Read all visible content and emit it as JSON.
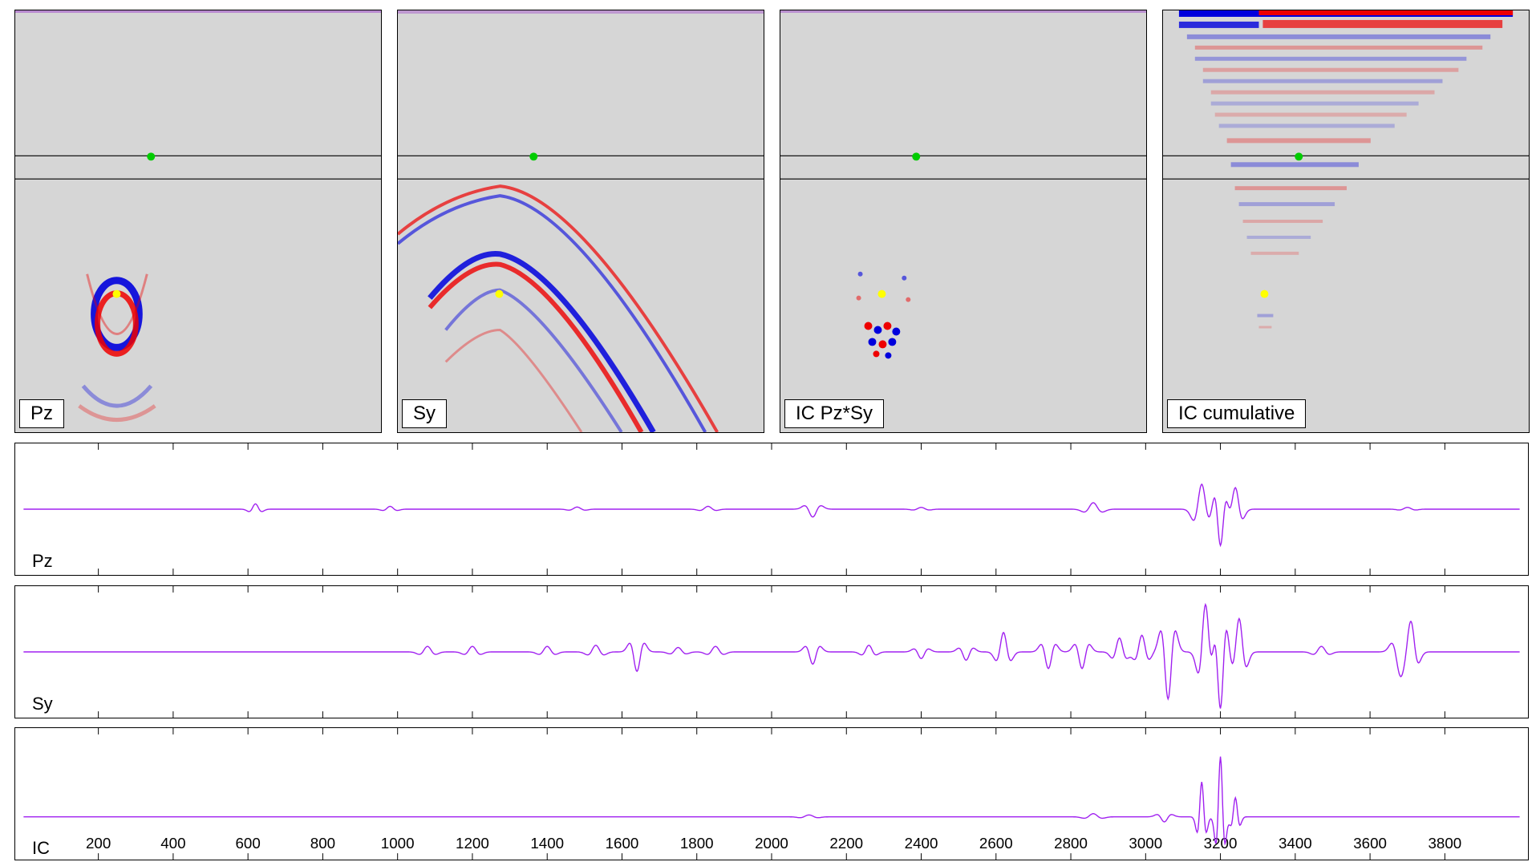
{
  "panels": [
    {
      "label": "Pz"
    },
    {
      "label": "Sy"
    },
    {
      "label": "IC Pz*Sy"
    },
    {
      "label": "IC cumulative"
    }
  ],
  "colors": {
    "panel_bg": "#d6d6d6",
    "positive": "#ee0000",
    "negative": "#0000dd",
    "trace": "#a020f0",
    "receiver_marker": "#00cc00",
    "source_marker": "#ffff00"
  },
  "chart_data": [
    {
      "type": "line",
      "series": [
        {
          "name": "Pz",
          "label": "Pz"
        }
      ],
      "xlabel": "",
      "ylabel": "",
      "xlim": [
        0,
        4000
      ],
      "xticks": [
        200,
        400,
        600,
        800,
        1000,
        1200,
        1400,
        1600,
        1800,
        2000,
        2200,
        2400,
        2600,
        2800,
        3000,
        3200,
        3400,
        3600,
        3800
      ],
      "grid": false,
      "events": [
        {
          "t": 620,
          "amp": 0.15,
          "width": 14
        },
        {
          "t": 980,
          "amp": 0.08,
          "width": 16
        },
        {
          "t": 1480,
          "amp": 0.06,
          "width": 18
        },
        {
          "t": 1830,
          "amp": 0.08,
          "width": 18
        },
        {
          "t": 2110,
          "amp": -0.22,
          "width": 18
        },
        {
          "t": 2400,
          "amp": 0.05,
          "width": 18
        },
        {
          "t": 2860,
          "amp": 0.18,
          "width": 20
        },
        {
          "t": 3150,
          "amp": 0.7,
          "width": 18
        },
        {
          "t": 3200,
          "amp": -1.0,
          "width": 14
        },
        {
          "t": 3240,
          "amp": 0.6,
          "width": 16
        },
        {
          "t": 3700,
          "amp": 0.05,
          "width": 18
        }
      ]
    },
    {
      "type": "line",
      "series": [
        {
          "name": "Sy",
          "label": "Sy"
        }
      ],
      "xlabel": "",
      "ylabel": "",
      "xlim": [
        0,
        4000
      ],
      "xticks": [
        200,
        400,
        600,
        800,
        1000,
        1200,
        1400,
        1600,
        1800,
        2000,
        2200,
        2400,
        2600,
        2800,
        3000,
        3200,
        3400,
        3600,
        3800
      ],
      "grid": false,
      "events": [
        {
          "t": 1080,
          "amp": 0.1,
          "width": 18
        },
        {
          "t": 1200,
          "amp": 0.1,
          "width": 18
        },
        {
          "t": 1400,
          "amp": 0.1,
          "width": 18
        },
        {
          "t": 1530,
          "amp": 0.12,
          "width": 18
        },
        {
          "t": 1640,
          "amp": -0.35,
          "width": 16
        },
        {
          "t": 1750,
          "amp": 0.08,
          "width": 18
        },
        {
          "t": 1850,
          "amp": 0.1,
          "width": 18
        },
        {
          "t": 2110,
          "amp": -0.22,
          "width": 16
        },
        {
          "t": 2260,
          "amp": 0.12,
          "width": 16
        },
        {
          "t": 2400,
          "amp": -0.12,
          "width": 16
        },
        {
          "t": 2520,
          "amp": -0.15,
          "width": 16
        },
        {
          "t": 2620,
          "amp": 0.35,
          "width": 16
        },
        {
          "t": 2740,
          "amp": -0.3,
          "width": 16
        },
        {
          "t": 2830,
          "amp": -0.3,
          "width": 16
        },
        {
          "t": 2930,
          "amp": 0.25,
          "width": 16
        },
        {
          "t": 2990,
          "amp": 0.3,
          "width": 16
        },
        {
          "t": 3060,
          "amp": -0.85,
          "width": 16
        },
        {
          "t": 3160,
          "amp": 0.85,
          "width": 16
        },
        {
          "t": 3200,
          "amp": -1.0,
          "width": 14
        },
        {
          "t": 3250,
          "amp": 0.6,
          "width": 16
        },
        {
          "t": 3470,
          "amp": 0.1,
          "width": 18
        },
        {
          "t": 3680,
          "amp": -0.35,
          "width": 18
        },
        {
          "t": 3710,
          "amp": 0.45,
          "width": 16
        }
      ]
    },
    {
      "type": "line",
      "series": [
        {
          "name": "IC",
          "label": "IC"
        }
      ],
      "xlabel": "",
      "ylabel": "",
      "xlim": [
        0,
        4000
      ],
      "xticks": [
        200,
        400,
        600,
        800,
        1000,
        1200,
        1400,
        1600,
        1800,
        2000,
        2200,
        2400,
        2600,
        2800,
        3000,
        3200,
        3400,
        3600,
        3800
      ],
      "xticklabels": [
        "200",
        "400",
        "600",
        "800",
        "1000",
        "1200",
        "1400",
        "1600",
        "1800",
        "2000",
        "2200",
        "2400",
        "2600",
        "2800",
        "3000",
        "3200",
        "3400",
        "3600",
        "3800"
      ],
      "grid": false,
      "events": [
        {
          "t": 2100,
          "amp": 0.03,
          "width": 20
        },
        {
          "t": 2860,
          "amp": 0.05,
          "width": 20
        },
        {
          "t": 3050,
          "amp": -0.08,
          "width": 16
        },
        {
          "t": 3150,
          "amp": 0.55,
          "width": 10
        },
        {
          "t": 3200,
          "amp": 0.95,
          "width": 10
        },
        {
          "t": 3240,
          "amp": 0.3,
          "width": 10
        }
      ]
    }
  ]
}
